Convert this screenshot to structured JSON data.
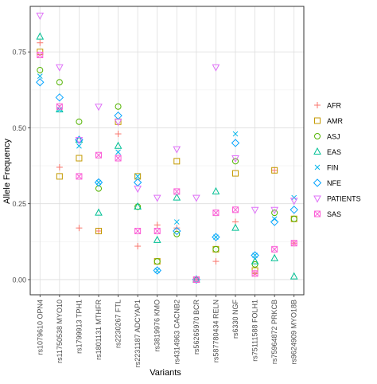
{
  "chart_data": {
    "type": "scatter",
    "xlabel": "Variants",
    "ylabel": "Allele Frequency",
    "ylim": [
      -0.05,
      0.9
    ],
    "yticks": [
      0.0,
      0.25,
      0.5,
      0.75
    ],
    "ytick_labels": [
      "0.00",
      "0.25",
      "0.50",
      "0.75"
    ],
    "grid": true,
    "legend_position": "right",
    "categories": [
      "rs1079610 OPN4",
      "rs11750538 MYO10",
      "rs1799913 TPH1",
      "rs1801131 MTHFR",
      "rs2230267 FTL",
      "rs2231187 ADCYAP1",
      "rs3819976 KMO",
      "rs4314963 CACNB2",
      "rs56265970 BCR",
      "rs587780434 RELN",
      "rs6330 NGF",
      "rs75111588 FOLH1",
      "rs75964872 PRKCB",
      "rs9624909 MYO18B"
    ],
    "series": [
      {
        "name": "AFR",
        "symbol": "plus",
        "color": "#F8766D",
        "values": [
          0.78,
          0.37,
          0.17,
          0.16,
          0.48,
          0.11,
          0.18,
          0.17,
          0.0,
          0.06,
          0.19,
          0.02,
          0.36,
          0.12
        ]
      },
      {
        "name": "AMR",
        "symbol": "square",
        "color": "#C49A00",
        "values": [
          0.75,
          0.34,
          0.4,
          0.16,
          0.52,
          0.34,
          0.06,
          0.39,
          0.0,
          0.1,
          0.35,
          0.03,
          0.36,
          0.2
        ]
      },
      {
        "name": "ASJ",
        "symbol": "circle",
        "color": "#53B400",
        "values": [
          0.69,
          0.65,
          0.52,
          0.3,
          0.57,
          0.24,
          0.06,
          0.15,
          0.0,
          0.1,
          0.39,
          0.05,
          0.22,
          0.2
        ]
      },
      {
        "name": "EAS",
        "symbol": "triangle-up",
        "color": "#00C094",
        "values": [
          0.8,
          0.56,
          0.46,
          0.22,
          0.44,
          0.24,
          0.13,
          0.27,
          0.0,
          0.29,
          0.17,
          0.06,
          0.07,
          0.01
        ]
      },
      {
        "name": "FIN",
        "symbol": "x",
        "color": "#00B6EB",
        "values": [
          0.67,
          0.56,
          0.44,
          0.32,
          0.42,
          0.34,
          0.03,
          0.19,
          0.0,
          0.14,
          0.48,
          0.08,
          0.2,
          0.27
        ]
      },
      {
        "name": "NFE",
        "symbol": "diamond",
        "color": "#06A4FF",
        "values": [
          0.65,
          0.6,
          0.46,
          0.32,
          0.54,
          0.32,
          0.03,
          0.16,
          0.0,
          0.14,
          0.45,
          0.08,
          0.19,
          0.23
        ]
      },
      {
        "name": "PATIENTS",
        "symbol": "triangle-down",
        "color": "#DF70F8",
        "values": [
          0.87,
          0.7,
          0.46,
          0.57,
          0.52,
          0.3,
          0.27,
          0.43,
          0.27,
          0.7,
          0.4,
          0.23,
          0.23,
          0.26
        ]
      },
      {
        "name": "SAS",
        "symbol": "square-x",
        "color": "#FB61D7",
        "values": [
          0.74,
          0.57,
          0.34,
          0.41,
          0.4,
          0.16,
          0.16,
          0.29,
          0.0,
          0.22,
          0.23,
          0.02,
          0.1,
          0.12
        ]
      }
    ]
  }
}
